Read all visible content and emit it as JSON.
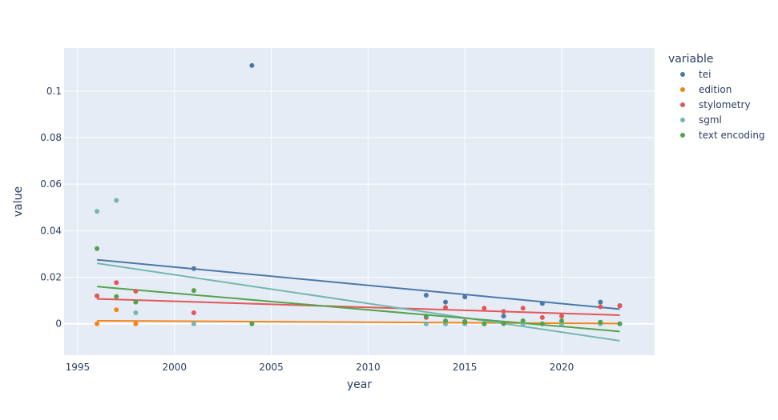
{
  "chart_data": {
    "type": "scatter",
    "xlabel": "year",
    "ylabel": "value",
    "xlim": [
      1994.3,
      2024.8
    ],
    "ylim": [
      -0.0135,
      0.1185
    ],
    "x_ticks": [
      1995,
      2000,
      2005,
      2010,
      2015,
      2020
    ],
    "x_tick_labels": [
      "1995",
      "2000",
      "2005",
      "2010",
      "2015",
      "2020"
    ],
    "y_ticks": [
      0,
      0.02,
      0.04,
      0.06,
      0.08,
      0.1
    ],
    "y_tick_labels": [
      "0",
      "0.02",
      "0.04",
      "0.06",
      "0.08",
      "0.1"
    ],
    "grid": true,
    "legend": {
      "title": "variable",
      "placement": "right"
    },
    "series": [
      {
        "name": "tei",
        "color": "#4c78a8",
        "points": [
          [
            1996,
            0.012
          ],
          [
            2001,
            0.0237
          ],
          [
            2004,
            0.111
          ],
          [
            2013,
            0.0123
          ],
          [
            2014,
            0.0093
          ],
          [
            2015,
            0.0115
          ],
          [
            2017,
            0.0033
          ],
          [
            2019,
            0.0087
          ],
          [
            2022,
            0.0093
          ],
          [
            2023,
            0.0078
          ]
        ],
        "trend": [
          [
            1996,
            0.0275
          ],
          [
            2023,
            0.0063
          ]
        ]
      },
      {
        "name": "edition",
        "color": "#f58518",
        "points": [
          [
            1996,
            0.0
          ],
          [
            1997,
            0.006
          ],
          [
            1998,
            0.0
          ],
          [
            2013,
            0.0
          ],
          [
            2014,
            0.0
          ],
          [
            2015,
            0.0
          ],
          [
            2016,
            0.0
          ],
          [
            2017,
            0.0
          ],
          [
            2018,
            0.0
          ],
          [
            2019,
            0.0
          ],
          [
            2020,
            0.0
          ],
          [
            2022,
            0.0
          ],
          [
            2023,
            0.0
          ]
        ],
        "trend": [
          [
            1996,
            0.0013
          ],
          [
            2023,
            0.0001
          ]
        ]
      },
      {
        "name": "stylometry",
        "color": "#e45756",
        "points": [
          [
            1996,
            0.012
          ],
          [
            1997,
            0.0177
          ],
          [
            1998,
            0.014
          ],
          [
            2001,
            0.0047
          ],
          [
            2013,
            0.0027
          ],
          [
            2014,
            0.007
          ],
          [
            2015,
            0.001
          ],
          [
            2016,
            0.0067
          ],
          [
            2017,
            0.0053
          ],
          [
            2018,
            0.0067
          ],
          [
            2019,
            0.0027
          ],
          [
            2020,
            0.0033
          ],
          [
            2022,
            0.0073
          ],
          [
            2023,
            0.0077
          ]
        ],
        "trend": [
          [
            1996,
            0.0107
          ],
          [
            2023,
            0.0037
          ]
        ]
      },
      {
        "name": "sgml",
        "color": "#72b7b2",
        "points": [
          [
            1996,
            0.0483
          ],
          [
            1997,
            0.053
          ],
          [
            1998,
            0.0047
          ],
          [
            2001,
            0.0
          ],
          [
            2004,
            0.0
          ],
          [
            2013,
            0.0
          ],
          [
            2014,
            0.0
          ],
          [
            2015,
            0.0
          ],
          [
            2016,
            0.0
          ],
          [
            2017,
            0.0
          ],
          [
            2018,
            0.0
          ],
          [
            2019,
            0.0
          ],
          [
            2020,
            0.0
          ],
          [
            2022,
            0.0
          ],
          [
            2023,
            0.0
          ]
        ],
        "trend": [
          [
            1996,
            0.026
          ],
          [
            2023,
            -0.0073
          ]
        ]
      },
      {
        "name": "text encoding",
        "color": "#54a24b",
        "points": [
          [
            1996,
            0.0323
          ],
          [
            1997,
            0.0117
          ],
          [
            1998,
            0.0093
          ],
          [
            2001,
            0.0143
          ],
          [
            2004,
            0.0
          ],
          [
            2013,
            0.0033
          ],
          [
            2014,
            0.0013
          ],
          [
            2015,
            0.0007
          ],
          [
            2016,
            0.0
          ],
          [
            2017,
            0.0003
          ],
          [
            2018,
            0.0013
          ],
          [
            2019,
            0.0
          ],
          [
            2020,
            0.0013
          ],
          [
            2022,
            0.0007
          ],
          [
            2023,
            0.0
          ]
        ],
        "trend": [
          [
            1996,
            0.016
          ],
          [
            2023,
            -0.0033
          ]
        ]
      }
    ]
  }
}
